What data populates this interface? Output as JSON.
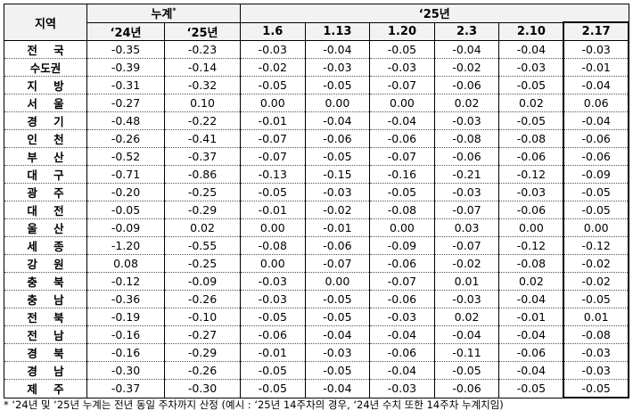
{
  "table": {
    "header": {
      "region": "지역",
      "cumulative": "누계",
      "cumulative_mark": "*",
      "year25": "‘25년",
      "columns": [
        "‘24년",
        "‘25년",
        "1.6",
        "1.13",
        "1.20",
        "2.3",
        "2.10",
        "2.17"
      ]
    },
    "rows": [
      [
        "전 국",
        "-0.35",
        "-0.23",
        "-0.03",
        "-0.04",
        "-0.05",
        "-0.04",
        "-0.04",
        "-0.03"
      ],
      [
        "수도권",
        "-0.39",
        "-0.14",
        "-0.02",
        "-0.03",
        "-0.03",
        "-0.02",
        "-0.03",
        "-0.01"
      ],
      [
        "지 방",
        "-0.31",
        "-0.32",
        "-0.05",
        "-0.05",
        "-0.07",
        "-0.06",
        "-0.05",
        "-0.04"
      ],
      [
        "서 울",
        "-0.27",
        "0.10",
        "0.00",
        "0.00",
        "0.00",
        "0.02",
        "0.02",
        "0.06"
      ],
      [
        "경 기",
        "-0.48",
        "-0.22",
        "-0.01",
        "-0.04",
        "-0.04",
        "-0.03",
        "-0.05",
        "-0.04"
      ],
      [
        "인 천",
        "-0.26",
        "-0.41",
        "-0.07",
        "-0.06",
        "-0.06",
        "-0.08",
        "-0.08",
        "-0.06"
      ],
      [
        "부 산",
        "-0.52",
        "-0.37",
        "-0.07",
        "-0.05",
        "-0.07",
        "-0.06",
        "-0.06",
        "-0.06"
      ],
      [
        "대 구",
        "-0.71",
        "-0.86",
        "-0.13",
        "-0.15",
        "-0.16",
        "-0.21",
        "-0.12",
        "-0.09"
      ],
      [
        "광 주",
        "-0.20",
        "-0.25",
        "-0.05",
        "-0.03",
        "-0.05",
        "-0.03",
        "-0.03",
        "-0.05"
      ],
      [
        "대 전",
        "-0.05",
        "-0.29",
        "-0.01",
        "-0.02",
        "-0.08",
        "-0.07",
        "-0.06",
        "-0.05"
      ],
      [
        "울 산",
        "-0.09",
        "0.02",
        "0.00",
        "-0.01",
        "0.00",
        "0.03",
        "0.00",
        "0.00"
      ],
      [
        "세 종",
        "-1.20",
        "-0.55",
        "-0.08",
        "-0.06",
        "-0.09",
        "-0.07",
        "-0.12",
        "-0.12"
      ],
      [
        "강 원",
        "0.08",
        "-0.25",
        "0.00",
        "-0.07",
        "-0.06",
        "-0.02",
        "-0.08",
        "-0.02"
      ],
      [
        "충 북",
        "-0.12",
        "-0.09",
        "-0.03",
        "0.00",
        "-0.07",
        "0.01",
        "0.02",
        "-0.02"
      ],
      [
        "충 남",
        "-0.36",
        "-0.26",
        "-0.03",
        "-0.05",
        "-0.06",
        "-0.03",
        "-0.04",
        "-0.05"
      ],
      [
        "전 북",
        "-0.19",
        "-0.10",
        "-0.05",
        "-0.05",
        "-0.03",
        "0.02",
        "-0.01",
        "0.01"
      ],
      [
        "전 남",
        "-0.16",
        "-0.27",
        "-0.06",
        "-0.04",
        "-0.04",
        "-0.04",
        "-0.04",
        "-0.08"
      ],
      [
        "경 북",
        "-0.16",
        "-0.29",
        "-0.01",
        "-0.03",
        "-0.06",
        "-0.11",
        "-0.06",
        "-0.03"
      ],
      [
        "경 남",
        "-0.30",
        "-0.26",
        "-0.05",
        "-0.05",
        "-0.04",
        "-0.05",
        "-0.04",
        "-0.03"
      ],
      [
        "제 주",
        "-0.37",
        "-0.30",
        "-0.05",
        "-0.04",
        "-0.03",
        "-0.06",
        "-0.05",
        "-0.05"
      ]
    ],
    "footnote": "* ‘24년 및 ‘25년 누계는 전년 동일 주차까지 산정 (예시 : ‘25년 14주차의 경우, ‘24년 수치 또한 14주차 누계치임)"
  }
}
